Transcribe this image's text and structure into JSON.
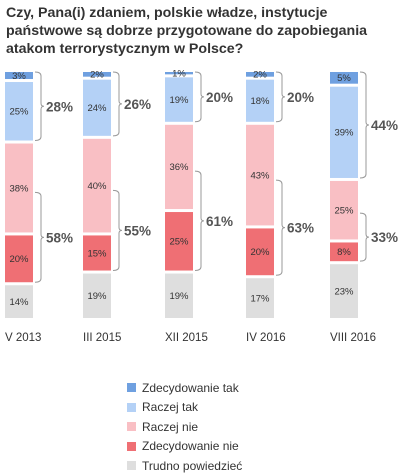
{
  "chart_data": {
    "type": "bar",
    "stacked": true,
    "normalized_percent": true,
    "title": "Czy, Pana(i) zdaniem, polskie władze, instytucje państwowe są dobrze przygotowane do zapobiegania atakom terrorystycznym w Polsce?",
    "categories": [
      "V 2013",
      "III 2015",
      "XII 2015",
      "IV 2016",
      "VIII 2016"
    ],
    "series": [
      {
        "name": "Zdecydowanie tak",
        "color": "#6fa0e0",
        "values": [
          3,
          2,
          1,
          2,
          5
        ]
      },
      {
        "name": "Raczej tak",
        "color": "#b4d1f6",
        "values": [
          25,
          24,
          19,
          18,
          39
        ]
      },
      {
        "name": "Raczej nie",
        "color": "#f9bfc4",
        "values": [
          38,
          40,
          36,
          43,
          25
        ]
      },
      {
        "name": "Zdecydowanie nie",
        "color": "#ef6f74",
        "values": [
          20,
          15,
          25,
          20,
          8
        ]
      },
      {
        "name": "Trudno powiedzieć",
        "color": "#dedede",
        "values": [
          14,
          19,
          19,
          17,
          23
        ]
      }
    ],
    "totals": {
      "tak": [
        "28%",
        "26%",
        "20%",
        "20%",
        "44%"
      ],
      "nie": [
        "58%",
        "55%",
        "61%",
        "63%",
        "33%"
      ]
    },
    "legend_position": "bottom",
    "grid": false
  }
}
